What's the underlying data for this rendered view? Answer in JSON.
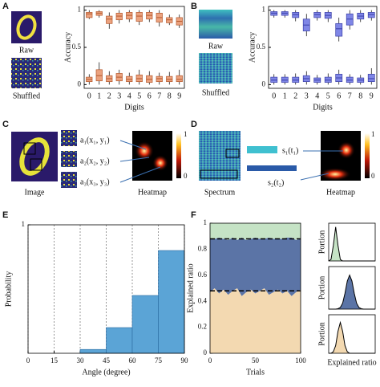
{
  "labels": {
    "panels": [
      "A",
      "B",
      "C",
      "D",
      "E",
      "F"
    ],
    "a_raw": "Raw",
    "a_shuffled": "Shuffled",
    "b_raw": "Raw",
    "b_shuffled": "Shuffled",
    "c_image": "Image",
    "c_heatmap": "Heatmap",
    "c_a1": "a₁(x₁, y₁)",
    "c_a2": "a₂(x₂, y₂)",
    "c_a3": "a₃(x₃, y₃)",
    "c_cb_max": "1",
    "c_cb_min": "0",
    "d_spectrum": "Spectrum",
    "d_heatmap": "Heatmap",
    "d_s1": "s₁(t₁)",
    "d_s2": "s₂(t₂)",
    "d_cb_max": "1",
    "d_cb_min": "0"
  },
  "chart_data": [
    {
      "type": "box",
      "xlabel": "Digits",
      "ylabel": "Accuracy",
      "color": "#eba27f",
      "edge_color": "#b5582b",
      "categories": [
        "0",
        "1",
        "2",
        "3",
        "4",
        "5",
        "6",
        "7",
        "8",
        "9"
      ],
      "ylim": [
        -0.05,
        1.05
      ],
      "yticks": [
        0,
        0.5,
        1
      ],
      "groups": [
        [
          {
            "min": 0.88,
            "q1": 0.9,
            "median": 0.95,
            "q3": 0.97,
            "max": 1
          },
          {
            "min": 0.9,
            "q1": 0.93,
            "median": 0.96,
            "q3": 0.98,
            "max": 1
          },
          {
            "min": 0.75,
            "q1": 0.82,
            "median": 0.88,
            "q3": 0.92,
            "max": 0.97
          },
          {
            "min": 0.82,
            "q1": 0.87,
            "median": 0.92,
            "q3": 0.96,
            "max": 1
          },
          {
            "min": 0.84,
            "q1": 0.88,
            "median": 0.93,
            "q3": 0.97,
            "max": 1
          },
          {
            "min": 0.8,
            "q1": 0.85,
            "median": 0.92,
            "q3": 0.97,
            "max": 1
          },
          {
            "min": 0.84,
            "q1": 0.88,
            "median": 0.93,
            "q3": 0.97,
            "max": 1
          },
          {
            "min": 0.78,
            "q1": 0.84,
            "median": 0.9,
            "q3": 0.96,
            "max": 1
          },
          {
            "min": 0.8,
            "q1": 0.83,
            "median": 0.87,
            "q3": 0.9,
            "max": 0.94
          },
          {
            "min": 0.76,
            "q1": 0.8,
            "median": 0.85,
            "q3": 0.9,
            "max": 0.94
          }
        ],
        [
          {
            "min": 0,
            "q1": 0.04,
            "median": 0.07,
            "q3": 0.1,
            "max": 0.14
          },
          {
            "min": 0,
            "q1": 0.05,
            "median": 0.12,
            "q3": 0.2,
            "max": 0.3
          },
          {
            "min": 0,
            "q1": 0.04,
            "median": 0.08,
            "q3": 0.12,
            "max": 0.18
          },
          {
            "min": 0,
            "q1": 0.05,
            "median": 0.1,
            "q3": 0.15,
            "max": 0.2
          },
          {
            "min": 0,
            "q1": 0.04,
            "median": 0.07,
            "q3": 0.11,
            "max": 0.16
          },
          {
            "min": 0,
            "q1": 0.04,
            "median": 0.08,
            "q3": 0.13,
            "max": 0.2
          },
          {
            "min": 0,
            "q1": 0.03,
            "median": 0.07,
            "q3": 0.12,
            "max": 0.18
          },
          {
            "min": 0,
            "q1": 0.04,
            "median": 0.08,
            "q3": 0.11,
            "max": 0.16
          },
          {
            "min": 0,
            "q1": 0.04,
            "median": 0.07,
            "q3": 0.11,
            "max": 0.17
          },
          {
            "min": 0,
            "q1": 0.04,
            "median": 0.07,
            "q3": 0.12,
            "max": 0.2
          }
        ]
      ]
    },
    {
      "type": "box",
      "xlabel": "Digits",
      "ylabel": "Accuracy",
      "color": "#7f86e6",
      "edge_color": "#3a3fa8",
      "categories": [
        "0",
        "1",
        "2",
        "3",
        "4",
        "5",
        "6",
        "7",
        "8",
        "9"
      ],
      "ylim": [
        -0.05,
        1.05
      ],
      "yticks": [
        0,
        0.5,
        1
      ],
      "groups": [
        [
          {
            "min": 0.9,
            "q1": 0.93,
            "median": 0.96,
            "q3": 0.98,
            "max": 1
          },
          {
            "min": 0.9,
            "q1": 0.93,
            "median": 0.96,
            "q3": 0.98,
            "max": 1
          },
          {
            "min": 0.85,
            "q1": 0.9,
            "median": 0.94,
            "q3": 0.97,
            "max": 1
          },
          {
            "min": 0.65,
            "q1": 0.72,
            "median": 0.8,
            "q3": 0.88,
            "max": 0.95
          },
          {
            "min": 0.86,
            "q1": 0.9,
            "median": 0.94,
            "q3": 0.97,
            "max": 1
          },
          {
            "min": 0.84,
            "q1": 0.89,
            "median": 0.93,
            "q3": 0.97,
            "max": 1
          },
          {
            "min": 0.58,
            "q1": 0.65,
            "median": 0.75,
            "q3": 0.82,
            "max": 0.9
          },
          {
            "min": 0.74,
            "q1": 0.8,
            "median": 0.88,
            "q3": 0.95,
            "max": 1
          },
          {
            "min": 0.84,
            "q1": 0.88,
            "median": 0.92,
            "q3": 0.96,
            "max": 1
          },
          {
            "min": 0.86,
            "q1": 0.9,
            "median": 0.94,
            "q3": 0.97,
            "max": 1
          }
        ],
        [
          {
            "min": 0,
            "q1": 0.03,
            "median": 0.06,
            "q3": 0.1,
            "max": 0.14
          },
          {
            "min": 0,
            "q1": 0.03,
            "median": 0.06,
            "q3": 0.1,
            "max": 0.14
          },
          {
            "min": 0,
            "q1": 0.03,
            "median": 0.06,
            "q3": 0.1,
            "max": 0.15
          },
          {
            "min": 0,
            "q1": 0.04,
            "median": 0.08,
            "q3": 0.12,
            "max": 0.18
          },
          {
            "min": 0,
            "q1": 0.03,
            "median": 0.06,
            "q3": 0.09,
            "max": 0.13
          },
          {
            "min": 0,
            "q1": 0.03,
            "median": 0.06,
            "q3": 0.1,
            "max": 0.15
          },
          {
            "min": 0,
            "q1": 0.04,
            "median": 0.09,
            "q3": 0.14,
            "max": 0.2
          },
          {
            "min": 0,
            "q1": 0.03,
            "median": 0.06,
            "q3": 0.1,
            "max": 0.14
          },
          {
            "min": 0,
            "q1": 0.03,
            "median": 0.06,
            "q3": 0.09,
            "max": 0.13
          },
          {
            "min": 0,
            "q1": 0.04,
            "median": 0.08,
            "q3": 0.14,
            "max": 0.22
          }
        ]
      ]
    },
    {
      "type": "histogram",
      "xlabel": "Angle (degree)",
      "ylabel": "Probability",
      "color": "#5ba4d6",
      "xgrid": true,
      "bins": [
        0,
        15,
        30,
        45,
        60,
        75,
        90
      ],
      "values": [
        0,
        0,
        0.03,
        0.2,
        0.45,
        0.8
      ],
      "xlim": [
        0,
        90
      ],
      "xticks": [
        0,
        15,
        30,
        45,
        60,
        75,
        90
      ],
      "ylim": [
        0,
        1
      ],
      "yticks": [
        1
      ]
    },
    {
      "type": "stacked_area",
      "xlabel": "Trials",
      "ylabel": "Explained ratio",
      "x": [
        0,
        5,
        10,
        15,
        20,
        25,
        30,
        35,
        40,
        45,
        50,
        55,
        60,
        65,
        70,
        75,
        80,
        85,
        90,
        95,
        100
      ],
      "series": [
        {
          "color": "#f3d9b1",
          "values": [
            0.47,
            0.5,
            0.46,
            0.49,
            0.45,
            0.48,
            0.5,
            0.44,
            0.47,
            0.49,
            0.46,
            0.48,
            0.5,
            0.45,
            0.47,
            0.49,
            0.46,
            0.48,
            0.44,
            0.47,
            0.49
          ]
        },
        {
          "color": "#5b74a6",
          "values": [
            0.41,
            0.38,
            0.43,
            0.39,
            0.42,
            0.41,
            0.37,
            0.45,
            0.4,
            0.39,
            0.43,
            0.4,
            0.38,
            0.44,
            0.41,
            0.39,
            0.42,
            0.41,
            0.45,
            0.4,
            0.39
          ]
        },
        {
          "color": "#c5e3c5",
          "values": [
            0.12,
            0.12,
            0.11,
            0.12,
            0.13,
            0.11,
            0.13,
            0.11,
            0.13,
            0.12,
            0.11,
            0.12,
            0.12,
            0.11,
            0.12,
            0.12,
            0.12,
            0.11,
            0.11,
            0.13,
            0.12
          ]
        }
      ],
      "reference_lines": [
        0.48,
        0.88
      ],
      "xlim": [
        0,
        100
      ],
      "xticks": [
        0,
        50,
        100
      ],
      "ylim": [
        0,
        1
      ],
      "yticks": [
        0,
        0.2,
        0.4,
        0.6,
        0.8,
        1
      ]
    },
    {
      "type": "density",
      "ylabel": "Portion",
      "color": "#c5e3c5",
      "x": [
        0,
        0.05,
        0.1,
        0.15,
        0.2,
        0.25,
        0.3,
        0.35,
        0.4,
        0.45,
        0.5,
        0.55,
        0.6,
        0.65,
        0.7,
        0.75,
        0.8,
        0.85,
        0.9,
        0.95,
        1
      ],
      "values": [
        0,
        0.04,
        0.41,
        0.9,
        0.41,
        0.04,
        0,
        0,
        0,
        0,
        0,
        0,
        0,
        0,
        0,
        0,
        0,
        0,
        0,
        0,
        0
      ],
      "xlim": [
        0,
        1
      ],
      "ylim": [
        0,
        1
      ]
    },
    {
      "type": "density",
      "ylabel": "Portion",
      "color": "#5b74a6",
      "x": [
        0,
        0.05,
        0.1,
        0.15,
        0.2,
        0.25,
        0.3,
        0.35,
        0.4,
        0.45,
        0.5,
        0.55,
        0.6,
        0.65,
        0.7,
        0.75,
        0.8,
        0.85,
        0.9,
        0.95,
        1
      ],
      "values": [
        0,
        0,
        0,
        0,
        0.01,
        0.04,
        0.14,
        0.37,
        0.66,
        0.8,
        0.66,
        0.37,
        0.14,
        0.04,
        0.01,
        0,
        0,
        0,
        0,
        0,
        0
      ],
      "xlim": [
        0,
        1
      ],
      "ylim": [
        0,
        1
      ]
    },
    {
      "type": "density",
      "ylabel": "Portion",
      "xlabel": "Explained ratio",
      "color": "#f3d9b1",
      "x": [
        0,
        0.05,
        0.1,
        0.15,
        0.2,
        0.25,
        0.3,
        0.35,
        0.4,
        0.45,
        0.5,
        0.55,
        0.6,
        0.65,
        0.7,
        0.75,
        0.8,
        0.85,
        0.9,
        0.95,
        1
      ],
      "values": [
        0,
        0,
        0.04,
        0.2,
        0.57,
        0.8,
        0.57,
        0.2,
        0.04,
        0,
        0,
        0,
        0,
        0,
        0,
        0,
        0,
        0,
        0,
        0,
        0
      ],
      "xlim": [
        0,
        1
      ],
      "ylim": [
        0,
        1
      ]
    }
  ]
}
